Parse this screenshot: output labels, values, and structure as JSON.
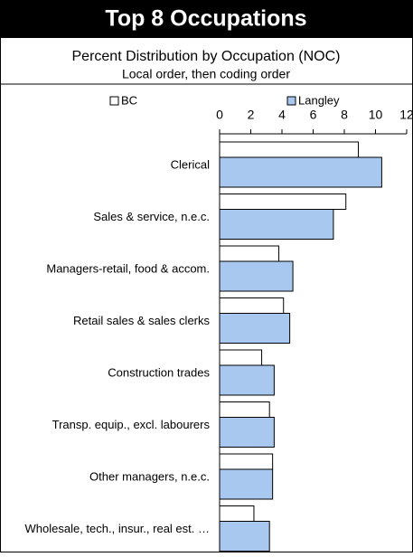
{
  "chart_data": {
    "type": "bar",
    "orientation": "horizontal",
    "title": "Top 8 Occupations",
    "subtitle": "Percent Distribution by Occupation (NOC)",
    "note": "Local order, then coding order",
    "categories": [
      "Clerical",
      "Sales & service, n.e.c.",
      "Managers-retail, food & accom.",
      "Retail sales & sales clerks",
      "Construction trades",
      "Transp. equip., excl. labourers",
      "Other managers, n.e.c.",
      "Wholesale, tech., insur., real est. …"
    ],
    "series": [
      {
        "name": "BC",
        "color": "#ffffff",
        "values": [
          8.9,
          8.1,
          3.8,
          4.1,
          2.7,
          3.2,
          3.4,
          2.2
        ]
      },
      {
        "name": "Langley",
        "color": "#a9c8ef",
        "values": [
          10.4,
          7.3,
          4.7,
          4.5,
          3.5,
          3.5,
          3.4,
          3.2
        ]
      }
    ],
    "xlim": [
      0,
      12
    ],
    "xticks": [
      0,
      2,
      4,
      6,
      8,
      10,
      12
    ],
    "legend": "top"
  }
}
